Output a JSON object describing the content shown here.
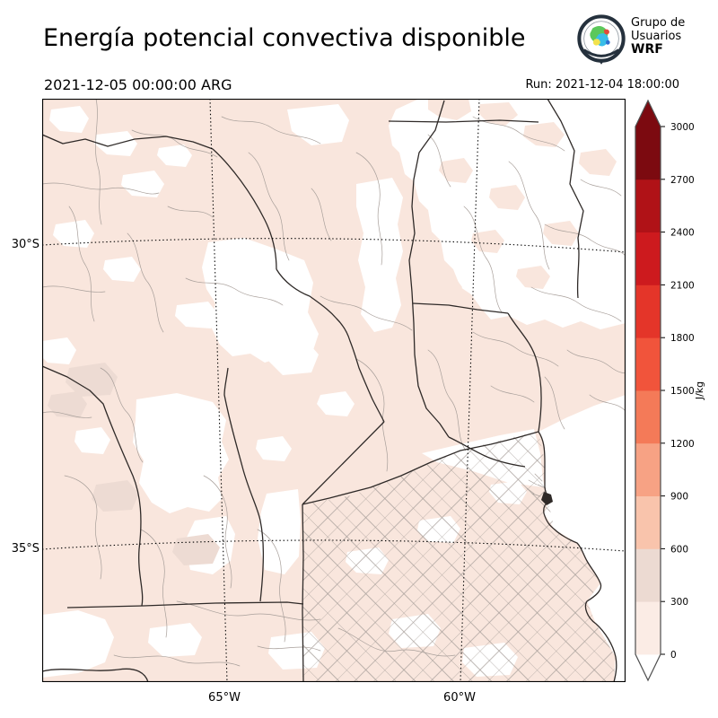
{
  "header": {
    "title": "Energía potencial convectiva disponible",
    "valid_time": "2021-12-05 00:00:00 ARG",
    "run_label": "Run: 2021-12-04 18:00:00"
  },
  "logo": {
    "line1": "Grupo de",
    "line2": "Usuarios",
    "line3": "WRF"
  },
  "map": {
    "lat_ticks": [
      {
        "label": "30°S"
      },
      {
        "label": "35°S"
      }
    ],
    "lon_ticks": [
      {
        "label": "65°W"
      },
      {
        "label": "60°W"
      }
    ],
    "fill_colors": {
      "low_cape": "#f9e6dd",
      "none": "#ffffff",
      "mid_patch": "#eddbd3"
    },
    "boundary_colors": {
      "province": "#2f2a28",
      "department": "#a89f9a"
    }
  },
  "colorbar": {
    "unit": "J/kg",
    "levels": [
      0,
      300,
      600,
      900,
      1200,
      1500,
      1800,
      2100,
      2400,
      2700,
      3000
    ],
    "segment_colors": [
      "#fbece5",
      "#ecdad2",
      "#f9c4ac",
      "#f7a284",
      "#f47a58",
      "#f1543b",
      "#e43529",
      "#cd1a1e",
      "#b01217",
      "#7c0a10"
    ],
    "under_color": "#ffffff",
    "over_color": "#7c0a10",
    "outline_color": "#4d4d4d"
  }
}
